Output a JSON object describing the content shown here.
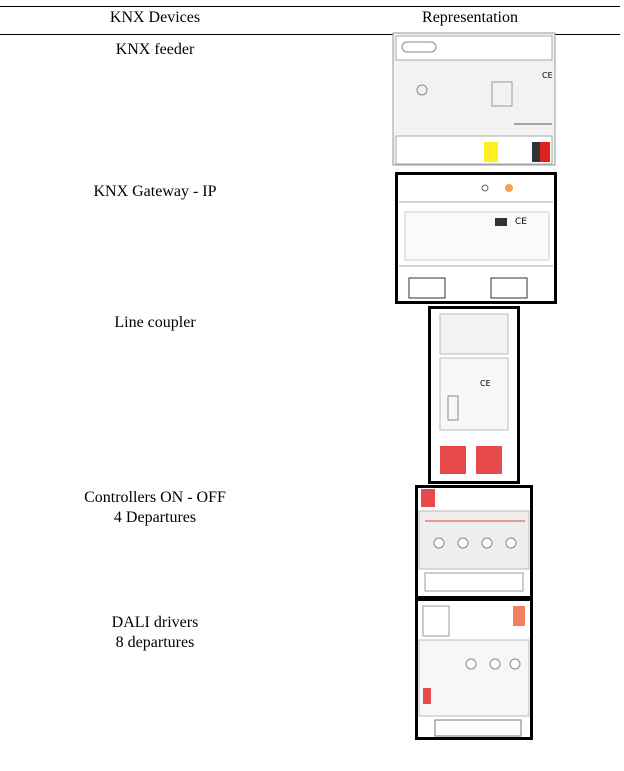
{
  "table": {
    "header": [
      "KNX Devices",
      "Representation"
    ],
    "rows": [
      {
        "lines": [
          "KNX feeder"
        ]
      },
      {
        "lines": [
          "KNX Gateway - IP"
        ]
      },
      {
        "lines": [
          "Line coupler"
        ]
      },
      {
        "lines": [
          "Controllers ON - OFF",
          "4 Departures"
        ]
      },
      {
        "lines": [
          "DALI drivers",
          "8 departures"
        ]
      }
    ]
  }
}
